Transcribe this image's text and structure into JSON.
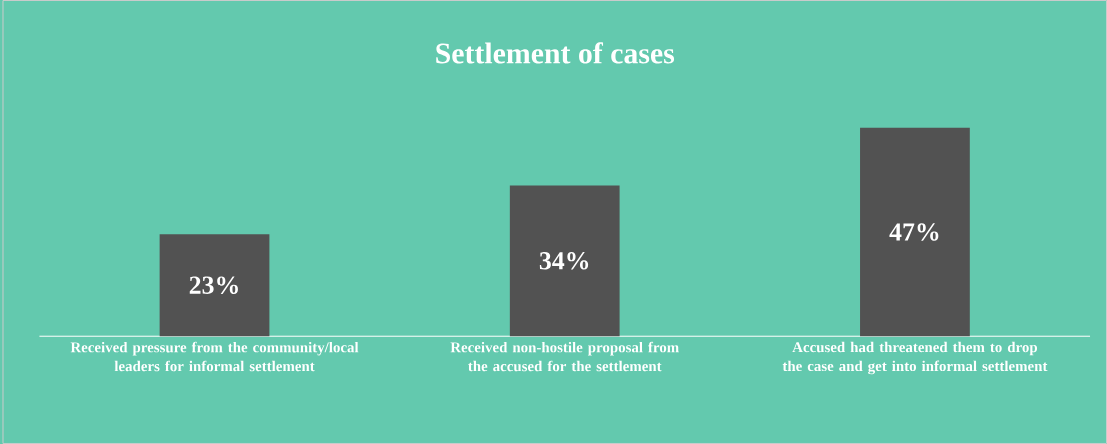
{
  "chart_data": {
    "type": "bar",
    "title": "Settlement of cases",
    "categories": [
      "Received pressure from the community/local leaders for informal settlement",
      "Received non-hostile proposal from the accused for the settlement",
      "Accused had threatened them to drop the case and get into informal settlement"
    ],
    "values": [
      23,
      34,
      47
    ],
    "color": "#525252",
    "value_labels": [
      "23%",
      "34%",
      "47%"
    ]
  }
}
